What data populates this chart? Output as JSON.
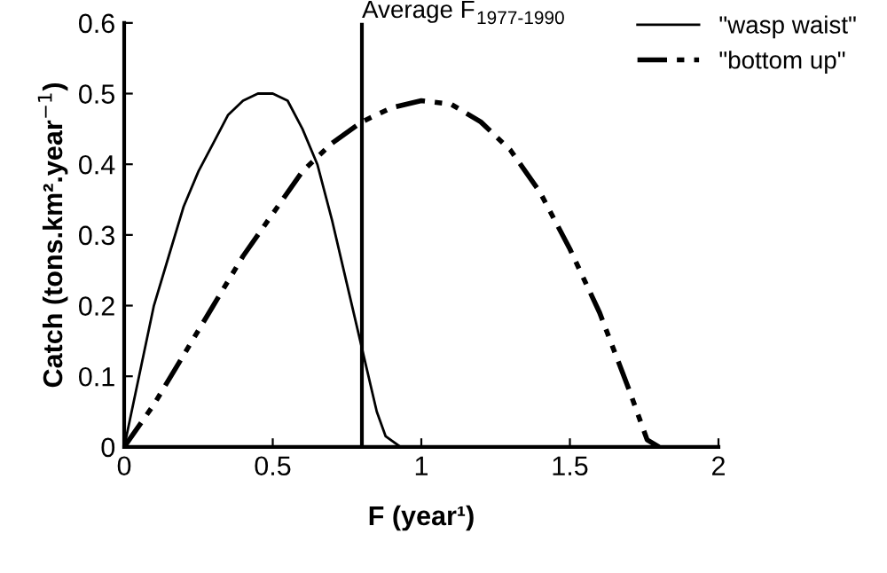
{
  "chart_data": {
    "type": "line",
    "xlabel": "F (year¹)",
    "ylabel": "Catch (tons.km².year$^{−1}$)",
    "series": [
      {
        "name": "\"wasp waist\"",
        "color": "#000000",
        "line_style": "solid",
        "x": [
          0,
          0.05,
          0.1,
          0.15,
          0.2,
          0.25,
          0.3,
          0.35,
          0.4,
          0.45,
          0.5,
          0.55,
          0.6,
          0.65,
          0.7,
          0.75,
          0.8,
          0.85,
          0.88,
          0.93
        ],
        "values": [
          0,
          0.1,
          0.2,
          0.27,
          0.34,
          0.39,
          0.43,
          0.47,
          0.49,
          0.5,
          0.5,
          0.49,
          0.45,
          0.4,
          0.32,
          0.23,
          0.14,
          0.05,
          0.015,
          0
        ]
      },
      {
        "name": "\"bottom up\"",
        "color": "#000000",
        "line_style": "dashdot",
        "x": [
          0,
          0.1,
          0.2,
          0.3,
          0.4,
          0.5,
          0.6,
          0.7,
          0.8,
          0.9,
          1.0,
          1.1,
          1.2,
          1.3,
          1.4,
          1.5,
          1.6,
          1.7,
          1.76,
          1.8
        ],
        "values": [
          0,
          0.06,
          0.13,
          0.2,
          0.27,
          0.33,
          0.39,
          0.43,
          0.46,
          0.48,
          0.49,
          0.485,
          0.46,
          0.42,
          0.36,
          0.28,
          0.19,
          0.08,
          0.01,
          0
        ]
      }
    ],
    "ref_lines": [
      {
        "axis": "x",
        "value": 0.8,
        "label": "Average F$_{1977-1990}$",
        "color": "#000000",
        "line_style": "solid"
      }
    ],
    "xlim": [
      0,
      2
    ],
    "ylim": [
      0,
      0.6
    ],
    "xticks": [
      0,
      0.5,
      1,
      1.5,
      2
    ],
    "yticks": [
      0,
      0.1,
      0.2,
      0.3,
      0.4,
      0.5,
      0.6
    ],
    "grid": false,
    "legend": "top right",
    "marker": "none"
  }
}
